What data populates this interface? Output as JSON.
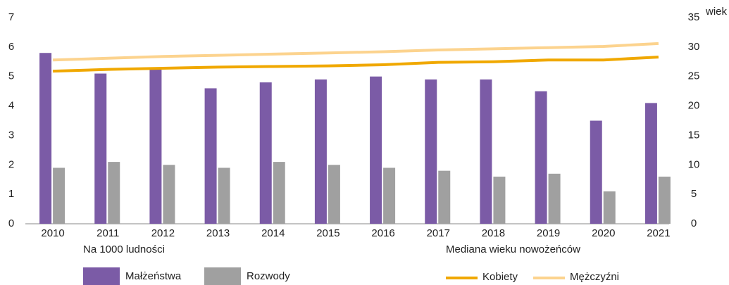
{
  "chart_data": {
    "type": "bar-line",
    "categories": [
      "2010",
      "2011",
      "2012",
      "2013",
      "2014",
      "2015",
      "2016",
      "2017",
      "2018",
      "2019",
      "2020",
      "2021"
    ],
    "series": [
      {
        "name": "Małżeństwa",
        "type": "bar",
        "color": "#7b5ba6",
        "values": [
          5.8,
          5.1,
          5.3,
          4.6,
          4.8,
          4.9,
          5.0,
          4.9,
          4.9,
          4.5,
          3.5,
          4.1
        ]
      },
      {
        "name": "Rozwody",
        "type": "bar",
        "color": "#a0a0a0",
        "values": [
          1.9,
          2.1,
          2.0,
          1.9,
          2.1,
          2.0,
          1.9,
          1.8,
          1.6,
          1.7,
          1.1,
          1.6
        ]
      },
      {
        "name": "Kobiety",
        "type": "line",
        "axis": "y2",
        "color": "#f0a800",
        "values": [
          25.9,
          26.2,
          26.4,
          26.6,
          26.7,
          26.8,
          27.0,
          27.4,
          27.5,
          27.8,
          27.8,
          28.3
        ]
      },
      {
        "name": "Mężczyźni",
        "type": "line",
        "axis": "y2",
        "color": "#fcd38e",
        "values": [
          27.8,
          28.1,
          28.4,
          28.6,
          28.8,
          29.0,
          29.2,
          29.5,
          29.7,
          29.9,
          30.1,
          30.6
        ]
      }
    ],
    "ylim": [
      0,
      7
    ],
    "yticks": [
      0,
      1,
      2,
      3,
      4,
      5,
      6,
      7
    ],
    "y2lim": [
      0,
      35
    ],
    "y2ticks": [
      0,
      5,
      10,
      15,
      20,
      25,
      30,
      35
    ],
    "y2label": "wiek",
    "legend_groups": [
      "Na 1000 ludności",
      "Mediana wieku nowożeńców"
    ],
    "grid": false
  }
}
